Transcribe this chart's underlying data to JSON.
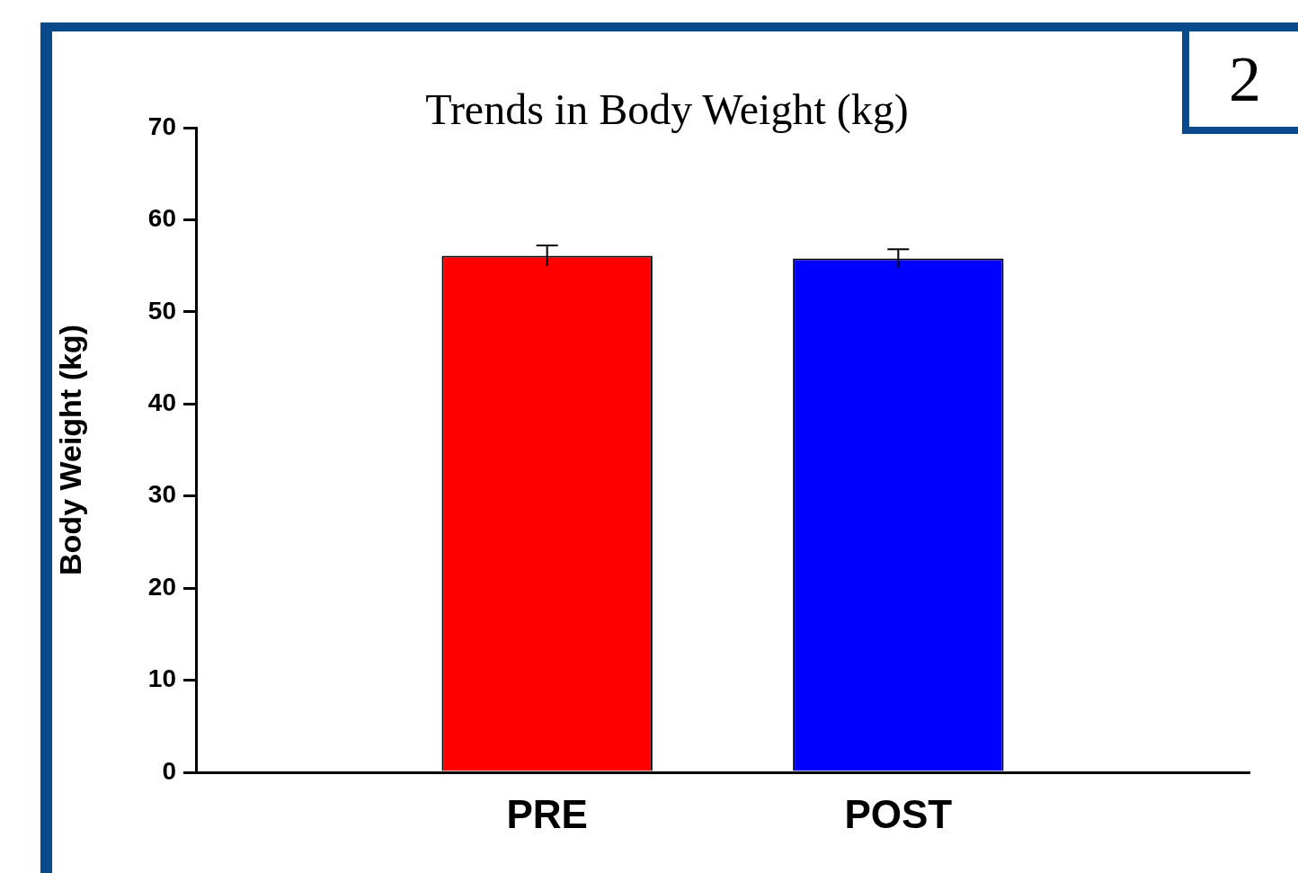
{
  "chart_data": {
    "type": "bar",
    "title": "Trends in Body Weight (kg)",
    "ylabel": "Body Weight (kg)",
    "categories": [
      "PRE",
      "POST"
    ],
    "values": [
      56.1,
      55.8
    ],
    "colors": [
      "#ff0000",
      "#0000ff"
    ],
    "errors": [
      1.1,
      1.0
    ],
    "ylim": [
      0,
      70
    ],
    "yticks": [
      0,
      10,
      20,
      30,
      40,
      50,
      60,
      70
    ],
    "annotations": [
      "2"
    ]
  }
}
